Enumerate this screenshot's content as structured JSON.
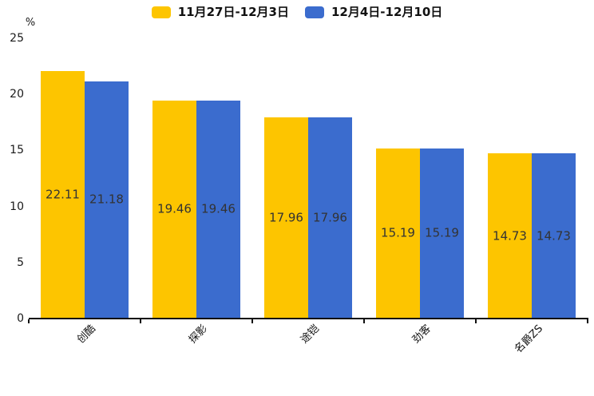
{
  "chart_data": {
    "type": "bar",
    "title": "",
    "xlabel": "",
    "ylabel": "%",
    "categories": [
      "创酷",
      "探影",
      "途铠",
      "劲客",
      "名爵ZS"
    ],
    "series": [
      {
        "name": "11月27日-12月3日",
        "color": "#FDC500",
        "values": [
          22.11,
          19.46,
          17.96,
          15.19,
          14.73
        ]
      },
      {
        "name": "12月4日-12月10日",
        "color": "#3B6CCE",
        "values": [
          21.18,
          19.46,
          17.96,
          15.19,
          14.73
        ]
      }
    ],
    "value_labels": [
      "22.11",
      "21.18",
      "19.46",
      "19.46",
      "17.96",
      "17.96",
      "15.19",
      "15.19",
      "14.73",
      "14.73"
    ],
    "ylim": [
      0,
      25
    ],
    "yticks": [
      "0",
      "5",
      "10",
      "15",
      "20",
      "25"
    ],
    "grid": false,
    "legend_position": "top",
    "value_label_position": "inside-center",
    "axis_color": "#111111",
    "value_label_color": "#333333"
  }
}
